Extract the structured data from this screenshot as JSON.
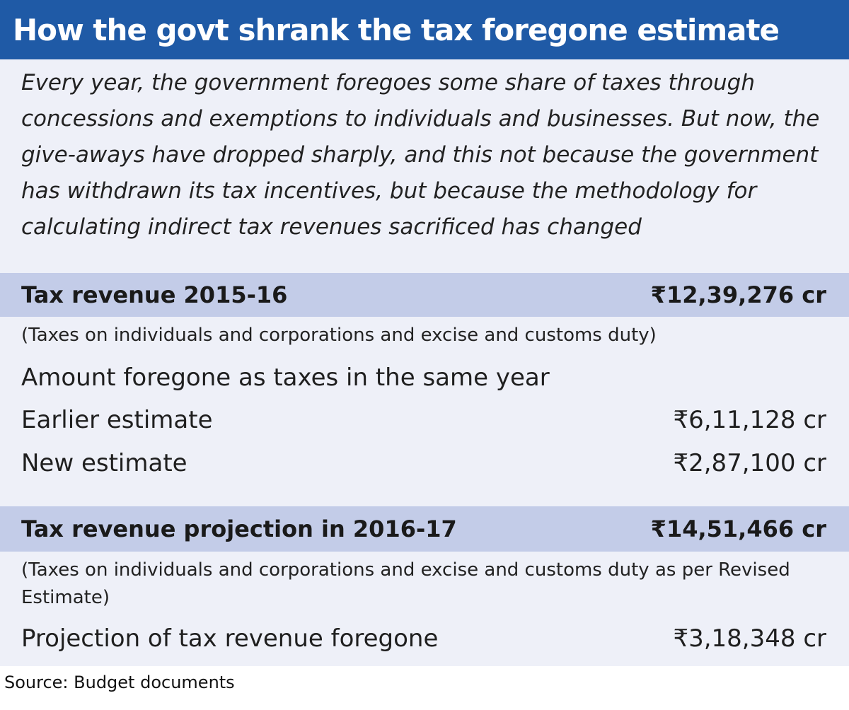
{
  "title": "How the govt shrank the tax foregone estimate",
  "intro": "Every year, the government foregoes some share of taxes through concessions and exemptions to individuals and businesses. But now, the give-aways have dropped sharply, and this not because the government has withdrawn its tax incentives, but because the methodology for calculating indirect tax revenues sacrificed has changed",
  "section_2015": {
    "label": "Tax revenue 2015-16",
    "value": "₹12,39,276 cr",
    "note": "(Taxes on individuals and corporations and excise and customs duty)",
    "subheading": "Amount foregone as taxes in the same year",
    "rows": [
      {
        "label": "Earlier estimate",
        "value": "₹6,11,128 cr"
      },
      {
        "label": "New estimate",
        "value": "₹2,87,100 cr"
      }
    ]
  },
  "section_2016": {
    "label": "Tax revenue projection in 2016-17",
    "value": "₹14,51,466 cr",
    "note": "(Taxes on individuals and corporations and excise and customs duty as per Revised Estimate)",
    "rows": [
      {
        "label": "Projection of tax revenue foregone",
        "value": "₹3,18,348 cr"
      }
    ]
  },
  "source": "Source: Budget documents",
  "colors": {
    "title_bar": "#1f5aa6",
    "panel_background": "#eef0f8",
    "band_background": "#c3cce8"
  }
}
